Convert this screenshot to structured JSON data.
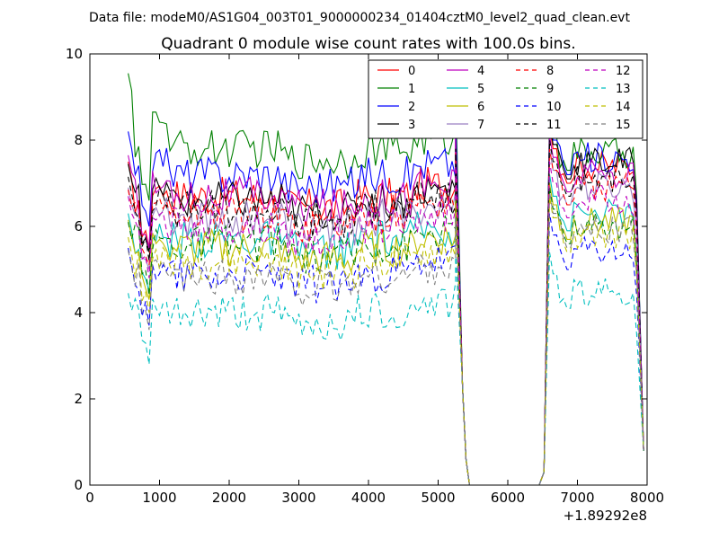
{
  "chart_data": {
    "type": "line",
    "suptitle": "Data file: modeM0/AS1G04_003T01_9000000234_01404cztM0_level2_quad_clean.evt",
    "title": "Quadrant 0 module wise count rates with 100.0s bins.",
    "xlabel": "",
    "ylabel": "",
    "x_offset_label": "+1.89292e8",
    "xlim": [
      0,
      8000
    ],
    "ylim": [
      0,
      10
    ],
    "x_ticks": [
      "0",
      "1000",
      "2000",
      "3000",
      "4000",
      "5000",
      "6000",
      "7000",
      "8000"
    ],
    "y_ticks": [
      "0",
      "2",
      "4",
      "6",
      "8",
      "10"
    ],
    "grid": false,
    "legend_placement": "top-right",
    "segments": [
      [
        550,
        5450
      ],
      [
        6450,
        7950
      ]
    ],
    "series": [
      {
        "name": "0",
        "color": "#ff0000",
        "dash": "solid",
        "gap": 0.4,
        "base": 6.7,
        "p2": 7.4
      },
      {
        "name": "1",
        "color": "#008000",
        "dash": "solid",
        "gap": 1.35,
        "base": 7.8,
        "p2": 7.7
      },
      {
        "name": "2",
        "color": "#0000ff",
        "dash": "solid",
        "gap": 0.6,
        "base": 7.2,
        "p2": 7.6
      },
      {
        "name": "3",
        "color": "#000000",
        "dash": "solid",
        "gap": 0.45,
        "base": 6.6,
        "p2": 7.5
      },
      {
        "name": "4",
        "color": "#bf00bf",
        "dash": "solid",
        "gap": 0.55,
        "base": 6.7,
        "p2": 7.2
      },
      {
        "name": "5",
        "color": "#00bfbf",
        "dash": "solid",
        "gap": 0.2,
        "base": 5.7,
        "p2": 6.3
      },
      {
        "name": "6",
        "color": "#bfbf00",
        "dash": "solid",
        "gap": 0.25,
        "base": 5.5,
        "p2": 6.1
      },
      {
        "name": "7",
        "color": "#9b7fc2",
        "dash": "solid",
        "gap": 0.3,
        "base": 6.2,
        "p2": 6.9
      },
      {
        "name": "8",
        "color": "#ff0000",
        "dash": "dashed",
        "gap": 0.15,
        "base": 6.3,
        "p2": 6.9
      },
      {
        "name": "9",
        "color": "#008000",
        "dash": "dashed",
        "gap": 0.1,
        "base": 5.6,
        "p2": 6.0
      },
      {
        "name": "10",
        "color": "#0000ff",
        "dash": "dashed",
        "gap": 0.2,
        "base": 4.9,
        "p2": 5.4
      },
      {
        "name": "11",
        "color": "#000000",
        "dash": "dashed",
        "gap": 0.35,
        "base": 6.4,
        "p2": 7.1
      },
      {
        "name": "12",
        "color": "#bf00bf",
        "dash": "dashed",
        "gap": 0.3,
        "base": 6.0,
        "p2": 6.6
      },
      {
        "name": "13",
        "color": "#00bfbf",
        "dash": "dashed",
        "gap": 0.05,
        "base": 4.0,
        "p2": 4.5
      },
      {
        "name": "14",
        "color": "#bfbf00",
        "dash": "dashed",
        "gap": 0.15,
        "base": 5.2,
        "p2": 5.8
      },
      {
        "name": "15",
        "color": "#808080",
        "dash": "dashed",
        "gap": 0.25,
        "base": 4.8,
        "p2": 5.9
      }
    ]
  }
}
